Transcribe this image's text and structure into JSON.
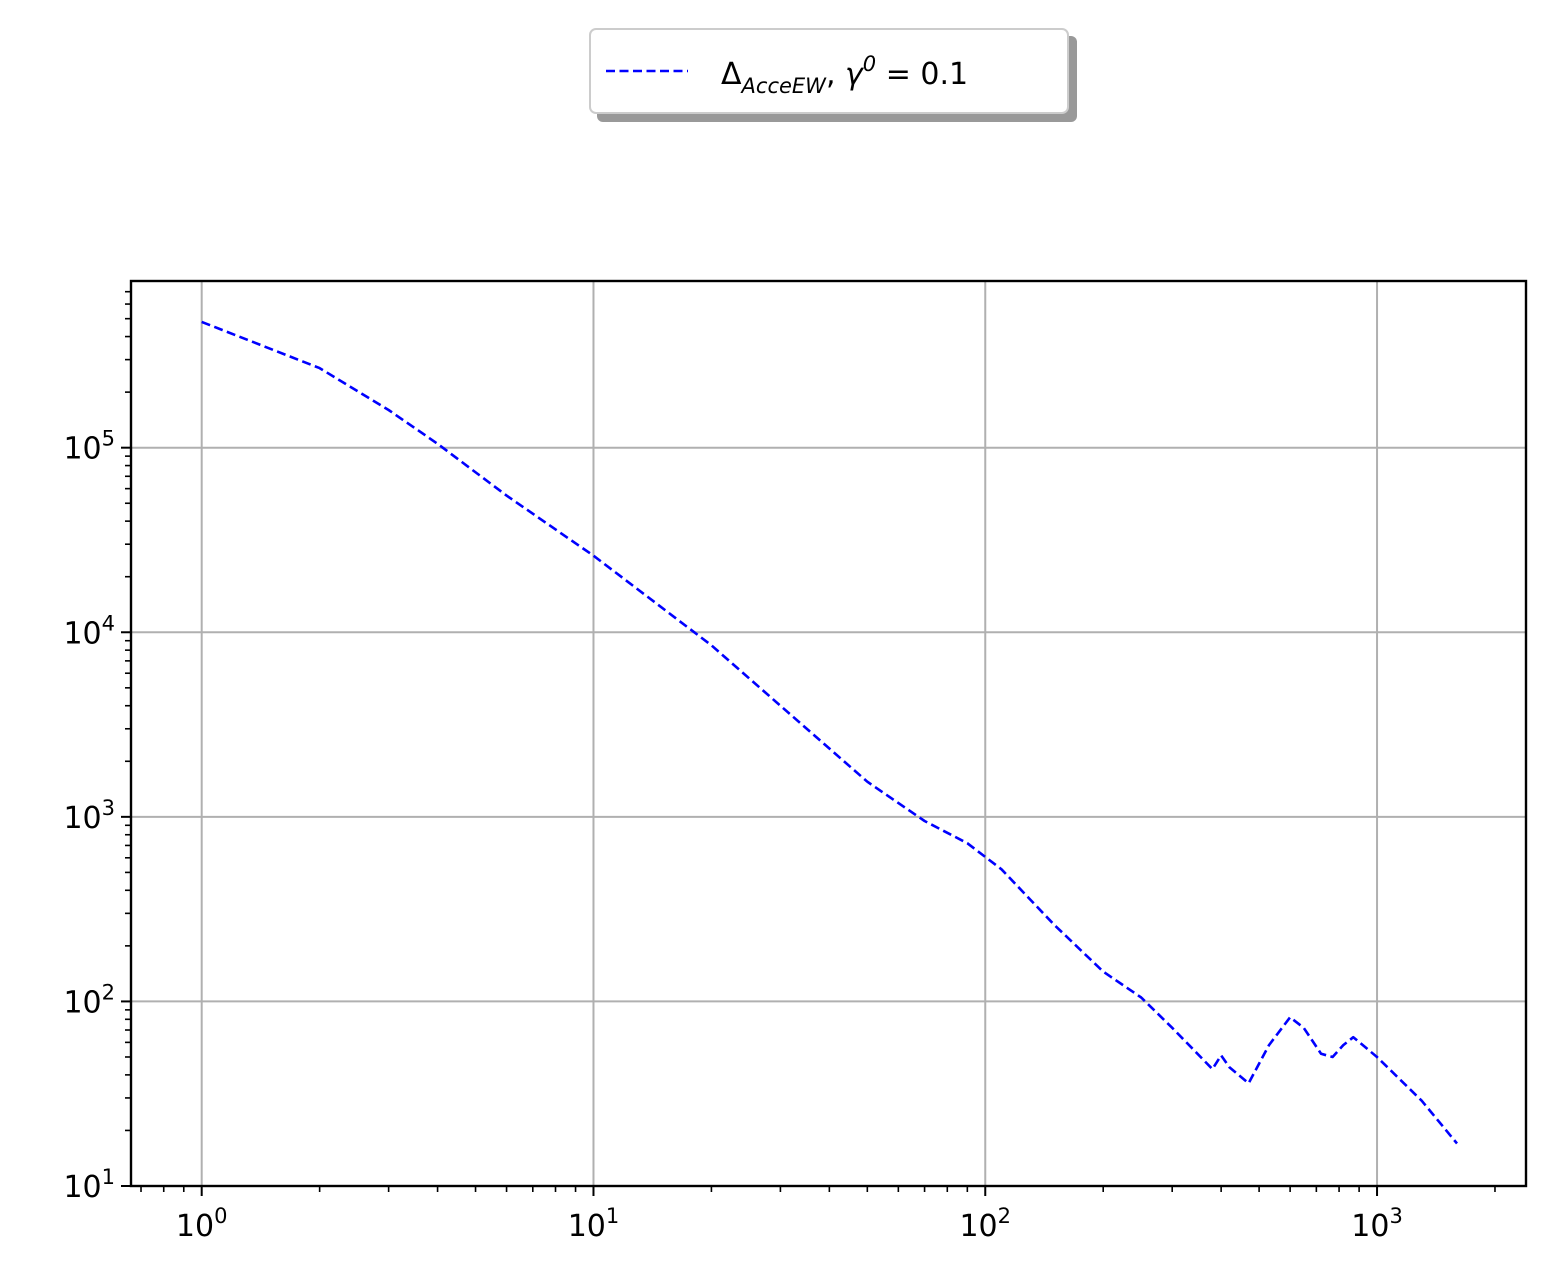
{
  "chart_data": {
    "type": "line",
    "title": "",
    "xlabel": "",
    "ylabel": "",
    "xscale": "log",
    "yscale": "log",
    "xlim": [
      0.66,
      2400
    ],
    "ylim": [
      10,
      800000
    ],
    "grid": true,
    "legend_position": "top-center, above plot",
    "x_ticks": [
      {
        "value": 1,
        "base": "10",
        "exp": "0"
      },
      {
        "value": 10,
        "base": "10",
        "exp": "1"
      },
      {
        "value": 100,
        "base": "10",
        "exp": "2"
      },
      {
        "value": 1000,
        "base": "10",
        "exp": "3"
      }
    ],
    "y_ticks": [
      {
        "value": 10,
        "base": "10",
        "exp": "1"
      },
      {
        "value": 100,
        "base": "10",
        "exp": "2"
      },
      {
        "value": 1000,
        "base": "10",
        "exp": "3"
      },
      {
        "value": 10000,
        "base": "10",
        "exp": "4"
      },
      {
        "value": 100000,
        "base": "10",
        "exp": "5"
      }
    ],
    "series": [
      {
        "name": "Δ_AcceEW, γ^0 = 0.1",
        "legend": {
          "delta": "Δ",
          "subscript": "AcceEW",
          "sep": ", ",
          "gamma": "γ",
          "sup": "0",
          "rest": " = 0.1"
        },
        "color": "#0000ff",
        "style": "dashed",
        "x": [
          1,
          2,
          3,
          4,
          6,
          10,
          20,
          30,
          50,
          70,
          90,
          110,
          150,
          200,
          250,
          300,
          380,
          400,
          420,
          470,
          530,
          600,
          650,
          720,
          770,
          820,
          870,
          1000,
          1300,
          1600
        ],
        "y": [
          480000,
          270000,
          160000,
          105000,
          55000,
          26000,
          8500,
          4000,
          1550,
          950,
          720,
          520,
          260,
          145,
          105,
          72,
          43,
          51,
          44,
          36,
          58,
          82,
          72,
          52,
          50,
          58,
          64,
          50,
          29,
          17
        ]
      }
    ]
  }
}
